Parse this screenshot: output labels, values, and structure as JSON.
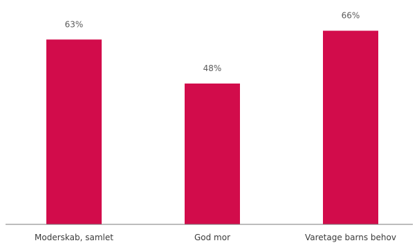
{
  "chart_data": {
    "type": "bar",
    "title": "",
    "categories": [
      "Moderskab, samlet",
      "God mor",
      "Varetage barns behov"
    ],
    "values": [
      63,
      48,
      66
    ],
    "value_labels": [
      "63%",
      "48%",
      "66%"
    ],
    "xlabel": "",
    "ylabel": "",
    "ylim": [
      0,
      70
    ],
    "grid": false,
    "legend": "none",
    "colors": {
      "bar": "#d20c4b",
      "axis": "#7a7a7a"
    }
  }
}
